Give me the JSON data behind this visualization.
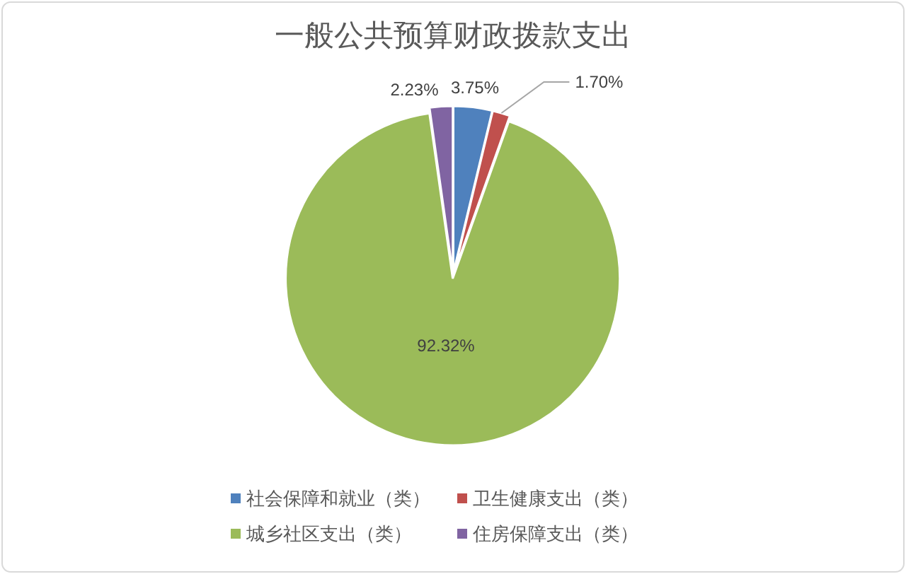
{
  "chart_data": {
    "type": "pie",
    "title": "一般公共预算财政拨款支出",
    "categories": [
      "社会保障和就业（类）",
      "卫生健康支出（类）",
      "城乡社区支出（类）",
      "住房保障支出（类）"
    ],
    "values": [
      3.75,
      1.7,
      92.32,
      2.23
    ],
    "colors": [
      "#4f81bd",
      "#c0504d",
      "#9bbb59",
      "#8064a2"
    ],
    "value_labels": [
      "3.75%",
      "1.70%",
      "92.32%",
      "2.23%"
    ],
    "legend": "bottom"
  }
}
